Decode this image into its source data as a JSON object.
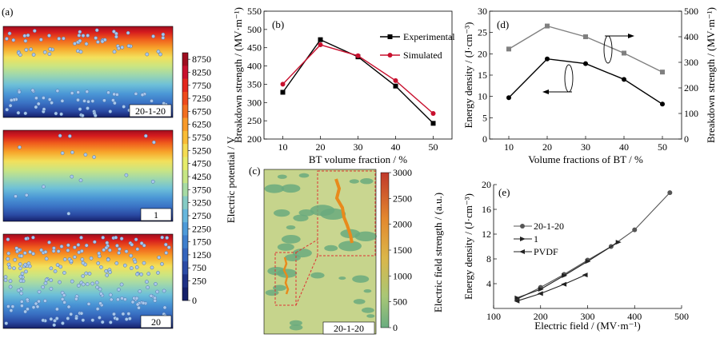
{
  "panel_labels": {
    "a": "(a)",
    "b": "(b)",
    "c": "(c)",
    "d": "(d)",
    "e": "(e)"
  },
  "panel_a": {
    "maps": [
      {
        "label": "20-1-20",
        "particle_distribution": "top-and-bottom"
      },
      {
        "label": "1",
        "particle_distribution": "sparse"
      },
      {
        "label": "20",
        "particle_distribution": "uniform"
      }
    ],
    "colorbar": {
      "title": "Electric potential / V",
      "ticks": [
        "8750",
        "8250",
        "7750",
        "7250",
        "6750",
        "6250",
        "5750",
        "5250",
        "4750",
        "4250",
        "3750",
        "3250",
        "2750",
        "2250",
        "1750",
        "1250",
        "750",
        "250",
        "0"
      ],
      "colors": [
        "#9e0d1f",
        "#c8102e",
        "#e3281e",
        "#ee4a1c",
        "#f26f20",
        "#f89a2a",
        "#f9bd37",
        "#f5dc53",
        "#e6ec6a",
        "#c7e685",
        "#a7dba4",
        "#86cbc5",
        "#67b7dd",
        "#4e9bd9",
        "#3f7fcd",
        "#3565bd",
        "#2b4ba6",
        "#1e3186",
        "#14206a"
      ]
    }
  },
  "panel_c": {
    "inset_label": "20-1-20",
    "colorbar": {
      "title": "Electric field strength / (a.u.)",
      "ticks": [
        "3000",
        "2500",
        "2000",
        "1500",
        "1000",
        "500",
        "0"
      ],
      "colors": [
        "#c0392b",
        "#d95f2b",
        "#e8902f",
        "#dca843",
        "#c8c35b",
        "#a4c578",
        "#74b181"
      ]
    }
  },
  "chart_data": [
    {
      "panel": "b",
      "type": "line",
      "xlabel": "BT volume fraction / %",
      "ylabel": "Breakdown strength / (MV·m⁻¹)",
      "x": [
        10,
        20,
        30,
        40,
        50
      ],
      "xlim": [
        5,
        55
      ],
      "ylim": [
        200,
        550
      ],
      "xticks": [
        10,
        20,
        30,
        40,
        50
      ],
      "yticks": [
        200,
        250,
        300,
        350,
        400,
        450,
        500,
        550
      ],
      "legend": "top-right",
      "series": [
        {
          "name": "Experimental",
          "color": "#000000",
          "marker": "square",
          "values": [
            328,
            472,
            425,
            345,
            243
          ]
        },
        {
          "name": "Simulated",
          "color": "#c8102e",
          "marker": "circle",
          "values": [
            350,
            458,
            428,
            360,
            270
          ]
        }
      ]
    },
    {
      "panel": "d",
      "type": "line",
      "xlabel": "Volume fractions of BT / %",
      "ylabel_left": "Energy density / (J·cm⁻³)",
      "ylabel_right": "Breakdown strength / (MV·m⁻¹)",
      "x": [
        10,
        20,
        30,
        40,
        50
      ],
      "xlim": [
        5,
        55
      ],
      "xticks": [
        10,
        20,
        30,
        40,
        50
      ],
      "ylim_left": [
        0,
        30
      ],
      "yticks_left": [
        0,
        5,
        10,
        15,
        20,
        25,
        30
      ],
      "ylim_right": [
        0,
        500
      ],
      "yticks_right": [
        0,
        100,
        200,
        300,
        400,
        500
      ],
      "series": [
        {
          "axis": "left",
          "color": "#000000",
          "marker": "circle",
          "values": [
            9.7,
            18.8,
            17.7,
            14.0,
            8.2
          ]
        },
        {
          "axis": "right",
          "color": "#808080",
          "marker": "square",
          "values": [
            352,
            442,
            400,
            336,
            262
          ]
        }
      ]
    },
    {
      "panel": "e",
      "type": "line",
      "xlabel": "Electric field / (MV·m⁻¹)",
      "ylabel": "Energy density / (J·cm⁻³)",
      "xlim": [
        100,
        500
      ],
      "ylim": [
        0,
        20
      ],
      "xticks": [
        100,
        200,
        300,
        400,
        500
      ],
      "yticks": [
        4,
        8,
        12,
        16,
        20
      ],
      "legend": "left",
      "series": [
        {
          "name": "20-1-20",
          "color": "#555555",
          "marker": "circle",
          "x": [
            150,
            200,
            250,
            300,
            350,
            400,
            475
          ],
          "y": [
            1.5,
            3.4,
            5.5,
            7.8,
            10.0,
            12.7,
            18.7
          ]
        },
        {
          "name": "1",
          "color": "#222222",
          "marker": "triangle-right",
          "x": [
            150,
            200,
            250,
            300,
            365
          ],
          "y": [
            1.7,
            3.1,
            5.3,
            7.6,
            10.7
          ]
        },
        {
          "name": "PVDF",
          "color": "#222222",
          "marker": "triangle-left",
          "x": [
            150,
            200,
            250,
            295
          ],
          "y": [
            1.2,
            2.4,
            3.9,
            5.4
          ]
        }
      ]
    }
  ]
}
